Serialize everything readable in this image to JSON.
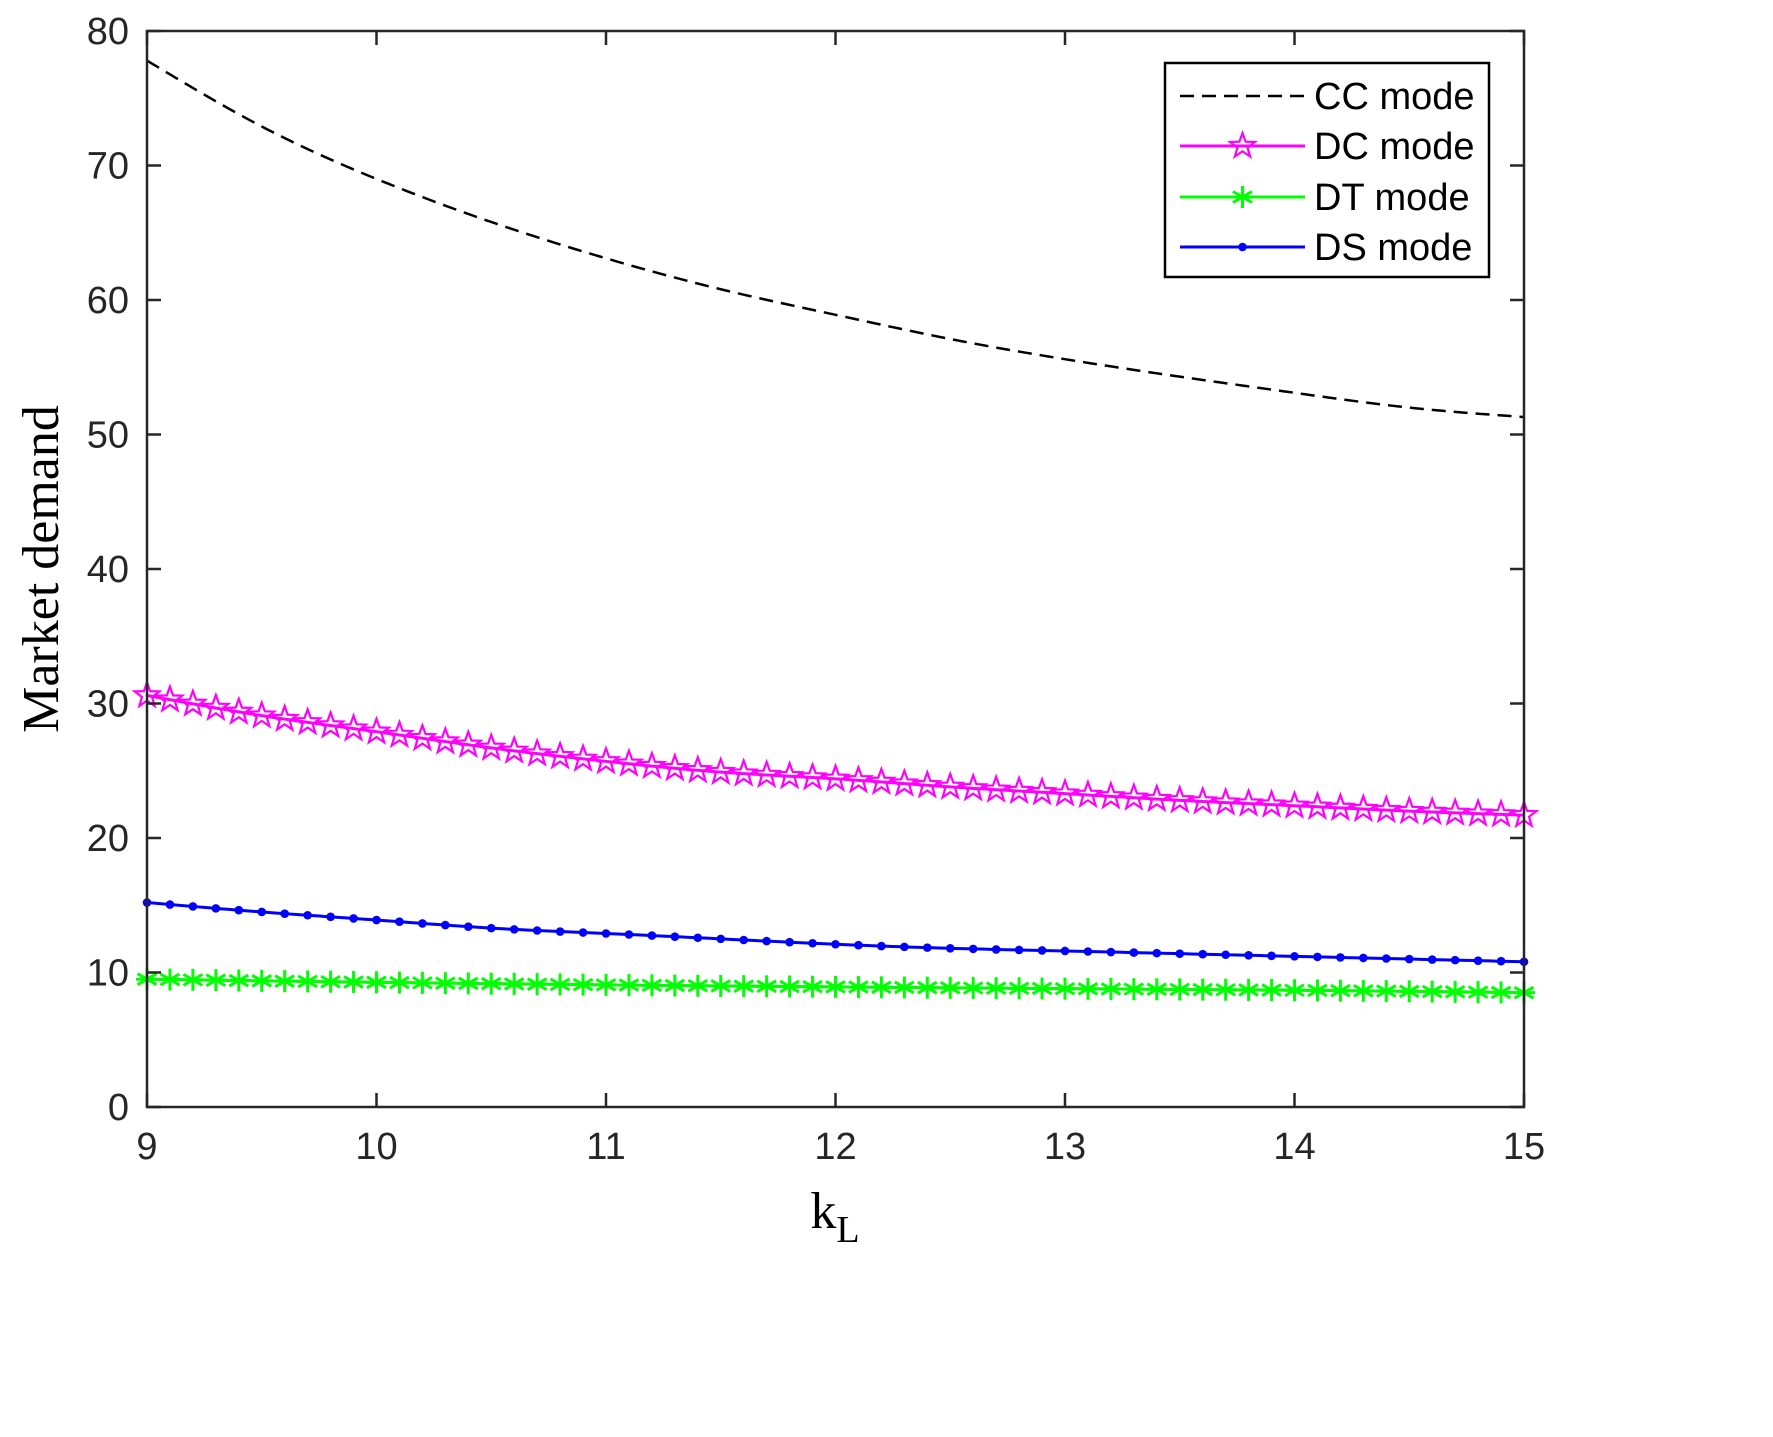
{
  "chart_data": {
    "type": "line",
    "xlabel": "k",
    "xlabel_subscript": "L",
    "ylabel": "Market demand",
    "xlim": [
      9,
      15
    ],
    "ylim": [
      0,
      80
    ],
    "xticks": [
      "9",
      "10",
      "11",
      "12",
      "13",
      "14",
      "15"
    ],
    "yticks": [
      "0",
      "10",
      "20",
      "30",
      "40",
      "50",
      "60",
      "70",
      "80"
    ],
    "grid": false,
    "legend_position": "top-right",
    "series": [
      {
        "name": "CC mode",
        "color": "#000000",
        "style": "dashed",
        "marker": "none",
        "x": [
          9,
          9.5,
          10,
          10.5,
          11,
          11.5,
          12,
          12.5,
          13,
          13.5,
          14,
          14.5,
          15
        ],
        "y": [
          77.8,
          72.9,
          69.0,
          65.8,
          63.1,
          60.8,
          58.9,
          57.1,
          55.6,
          54.3,
          53.1,
          52.0,
          51.3
        ]
      },
      {
        "name": "DC mode",
        "color": "#ff00ff",
        "style": "solid",
        "marker": "star",
        "x": [
          9,
          9.5,
          10,
          10.5,
          11,
          11.5,
          12,
          12.5,
          13,
          13.5,
          14,
          14.5,
          15
        ],
        "y": [
          30.6,
          29.1,
          27.9,
          26.7,
          25.7,
          24.9,
          24.4,
          23.8,
          23.3,
          22.8,
          22.4,
          22.0,
          21.7
        ]
      },
      {
        "name": "DT mode",
        "color": "#00ff00",
        "style": "solid",
        "marker": "asterisk",
        "x": [
          9,
          9.5,
          10,
          10.5,
          11,
          11.5,
          12,
          12.5,
          13,
          13.5,
          14,
          14.5,
          15
        ],
        "y": [
          9.5,
          9.38,
          9.27,
          9.17,
          9.08,
          9.0,
          8.93,
          8.86,
          8.8,
          8.74,
          8.68,
          8.6,
          8.5
        ]
      },
      {
        "name": "DS mode",
        "color": "#0000ff",
        "style": "solid",
        "marker": "dot",
        "x": [
          9,
          9.5,
          10,
          10.5,
          11,
          11.5,
          12,
          12.5,
          13,
          13.5,
          14,
          14.5,
          15
        ],
        "y": [
          15.2,
          14.5,
          13.9,
          13.3,
          12.9,
          12.5,
          12.1,
          11.8,
          11.6,
          11.4,
          11.2,
          11.0,
          10.8
        ]
      }
    ]
  }
}
